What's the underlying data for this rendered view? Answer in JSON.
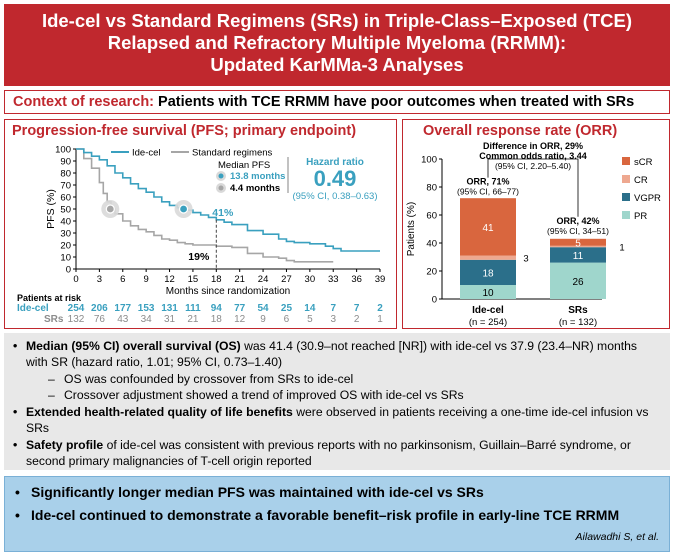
{
  "banner": {
    "line1": "Ide-cel vs Standard Regimens (SRs) in Triple-Class–Exposed (TCE)",
    "line2": "Relapsed and Refractory Multiple Myeloma (RRMM):",
    "line3": "Updated KarMMa-3 Analyses"
  },
  "context": {
    "label": "Context of research:",
    "text": "Patients with TCE RRMM have poor outcomes when treated with SRs"
  },
  "pfs": {
    "title": "Progression-free survival (PFS; primary endpoint)",
    "legend_idecel": "Ide-cel",
    "legend_sr": "Standard regimens",
    "median_label": "Median PFS",
    "median_idecel": "13.8 months",
    "median_sr": "4.4 months",
    "hr_label": "Hazard ratio",
    "hr_value": "0.49",
    "hr_ci": "(95% CI, 0.38–0.63)",
    "label_41": "41%",
    "label_19": "19%",
    "y_label": "PFS (%)",
    "x_label": "Months since randomization",
    "at_risk_label": "Patients at risk",
    "at_risk_idecel_label": "Ide-cel",
    "at_risk_sr_label": "SRs",
    "colors": {
      "idecel": "#3aa0bf",
      "sr": "#a6a6a6"
    }
  },
  "orr": {
    "title": "Overall response rate (ORR)",
    "diff_line1": "Difference in ORR, 29%",
    "diff_line2": "Common odds ratio, 3.44",
    "diff_line3": "(95% CI, 2.20–5.40)",
    "idecel_orr": "ORR, 71%",
    "idecel_ci": "(95% CI, 66–77)",
    "sr_orr": "ORR, 42%",
    "sr_ci": "(95% CI, 34–51)",
    "y_label": "Patients (%)",
    "legend": [
      "sCR",
      "CR",
      "VGPR",
      "PR"
    ],
    "colors": {
      "sCR": "#d9663e",
      "CR": "#eea890",
      "VGPR": "#2b6f8a",
      "PR": "#9fd6cc"
    }
  },
  "chart_data": [
    {
      "type": "line",
      "title": "Progression-free survival (PFS; primary endpoint)",
      "xlabel": "Months since randomization",
      "ylabel": "PFS (%)",
      "xlim": [
        0,
        39
      ],
      "ylim": [
        0,
        100
      ],
      "xticks": [
        "0",
        "3",
        "6",
        "9",
        "12",
        "15",
        "18",
        "21",
        "24",
        "27",
        "30",
        "33",
        "36",
        "39"
      ],
      "yticks": [
        "0",
        "10",
        "20",
        "30",
        "40",
        "50",
        "60",
        "70",
        "80",
        "90",
        "100"
      ],
      "legend": "top-left",
      "series": [
        {
          "name": "Ide-cel",
          "x": [
            0,
            1,
            2,
            3,
            4,
            5,
            6,
            7,
            8,
            9,
            10,
            11,
            12,
            13,
            14,
            15,
            16,
            17,
            18,
            19,
            20,
            22,
            24,
            26,
            27,
            28,
            30,
            32,
            33,
            34,
            36,
            37,
            38,
            39
          ],
          "y": [
            100,
            97,
            94,
            91,
            86,
            80,
            76,
            71,
            67,
            64,
            60,
            56,
            53,
            51,
            49,
            47,
            45,
            43,
            41,
            39,
            37,
            32,
            29,
            25,
            23,
            22,
            21,
            19,
            17,
            15,
            15,
            15,
            15,
            15
          ]
        },
        {
          "name": "Standard regimens",
          "x": [
            0,
            1,
            2,
            3,
            3.5,
            4,
            4.5,
            5,
            6,
            7,
            8,
            9,
            10,
            11,
            12,
            13,
            14,
            15,
            16,
            18,
            20,
            22,
            24,
            26,
            27,
            28,
            30,
            33
          ],
          "y": [
            100,
            92,
            84,
            72,
            63,
            56,
            50,
            46,
            40,
            36,
            33,
            31,
            28,
            25,
            24,
            22,
            21,
            20,
            20,
            19,
            18,
            13,
            10,
            9,
            7,
            6,
            6,
            6
          ]
        }
      ],
      "at_risk": {
        "Ide-cel": [
          "254",
          "206",
          "177",
          "153",
          "131",
          "111",
          "94",
          "77",
          "54",
          "25",
          "14",
          "7",
          "7",
          "2"
        ],
        "SRs": [
          "132",
          "76",
          "43",
          "34",
          "31",
          "21",
          "18",
          "12",
          "9",
          "6",
          "5",
          "3",
          "2",
          "1"
        ]
      }
    },
    {
      "type": "bar",
      "title": "Overall response rate (ORR)",
      "ylabel": "Patients (%)",
      "ylim": [
        0,
        100
      ],
      "yticks": [
        "0",
        "20",
        "40",
        "60",
        "80",
        "100"
      ],
      "legend": "right",
      "categories": [
        "Ide-cel",
        "SRs"
      ],
      "category_n": [
        "(n = 254)",
        "(n = 132)"
      ],
      "series": [
        {
          "name": "PR",
          "values": [
            10,
            26
          ],
          "labels": [
            "10",
            "26"
          ]
        },
        {
          "name": "VGPR",
          "values": [
            18,
            11
          ],
          "labels": [
            "18",
            "11"
          ]
        },
        {
          "name": "CR",
          "values": [
            3,
            1
          ],
          "labels": [
            "3",
            "1"
          ]
        },
        {
          "name": "sCR",
          "values": [
            41,
            5
          ],
          "labels": [
            "41",
            "5"
          ]
        }
      ]
    }
  ],
  "bullets": {
    "b1_bold": "Median (95% CI) overall survival (OS)",
    "b1_text": " was 41.4 (30.9–not reached [NR]) with ide-cel vs 37.9 (23.4–NR) months with SR (hazard ratio, 1.01; 95% CI, 0.73–1.40)",
    "b1_sub1": "OS was confounded by crossover from SRs to ide-cel",
    "b1_sub2": "Crossover adjustment showed a trend of improved OS with ide-cel vs SRs",
    "b2_bold": "Extended health-related quality of life benefits",
    "b2_text": " were observed in patients receiving a one-time ide-cel infusion vs SRs",
    "b3_bold": "Safety profile",
    "b3_text": " of ide-cel was consistent with previous reports with no parkinsonism, Guillain–Barré syndrome, or second primary malignancies of T-cell origin reported"
  },
  "conclusion": {
    "c1": "Significantly longer median PFS was maintained with ide-cel vs SRs",
    "c2": "Ide-cel continued to demonstrate a favorable benefit–risk profile in early-line TCE RRMM",
    "citation": "Ailawadhi S, et al."
  }
}
